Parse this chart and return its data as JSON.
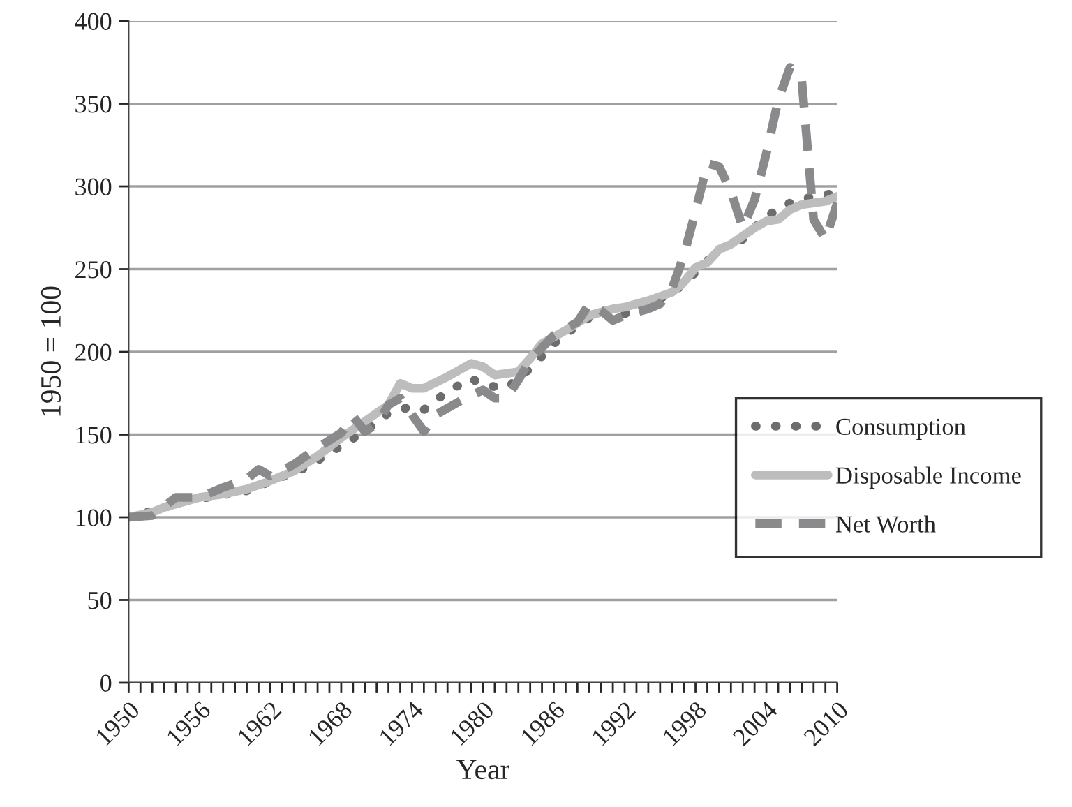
{
  "chart_data": {
    "type": "line",
    "xlabel": "Year",
    "ylabel": "1950 = 100",
    "series": [
      {
        "name": "Consumption",
        "color": "#6d6d6f",
        "line_style": "dotted",
        "x": [
          1950,
          1955,
          1960,
          1965,
          1970,
          1972,
          1974,
          1975,
          1977,
          1979,
          1980,
          1982,
          1984,
          1986,
          1988,
          1990,
          1992,
          1994,
          1996,
          1998,
          2000,
          2002,
          2004,
          2006,
          2008,
          2010
        ],
        "values": [
          100,
          110,
          116,
          130,
          152,
          163,
          167,
          165,
          176,
          184,
          180,
          178,
          190,
          205,
          216,
          225,
          223,
          230,
          235,
          248,
          262,
          268,
          282,
          290,
          294,
          296
        ]
      },
      {
        "name": "Disposable Income",
        "color": "#bdbdbd",
        "line_style": "solid",
        "x": [
          1950,
          1952,
          1953,
          1956,
          1958,
          1960,
          1962,
          1964,
          1966,
          1968,
          1970,
          1972,
          1973,
          1974,
          1975,
          1977,
          1979,
          1980,
          1981,
          1982,
          1983,
          1984,
          1985,
          1987,
          1989,
          1990,
          1991,
          1992,
          1994,
          1996,
          1997,
          1998,
          1999,
          2000,
          2001,
          2002,
          2003,
          2004,
          2005,
          2006,
          2007,
          2008,
          2009,
          2010
        ],
        "values": [
          100,
          103,
          106,
          112,
          114,
          117,
          122,
          128,
          137,
          148,
          158,
          168,
          181,
          178,
          178,
          185,
          193,
          191,
          186,
          187,
          188,
          196,
          205,
          213,
          222,
          224,
          226,
          227,
          231,
          236,
          242,
          251,
          254,
          262,
          265,
          270,
          275,
          279,
          280,
          286,
          289,
          290,
          291,
          294
        ]
      },
      {
        "name": "Net Worth",
        "color": "#8a8a8c",
        "line_style": "dashed",
        "x": [
          1950,
          1952,
          1954,
          1956,
          1958,
          1960,
          1961,
          1962,
          1964,
          1966,
          1968,
          1969,
          1970,
          1971,
          1972,
          1973,
          1974,
          1975,
          1976,
          1978,
          1980,
          1981,
          1982,
          1983,
          1984,
          1986,
          1988,
          1989,
          1990,
          1991,
          1992,
          1994,
          1995,
          1996,
          1997,
          1998,
          1999,
          2000,
          2001,
          2002,
          2003,
          2004,
          2005,
          2006,
          2007,
          2008,
          2009,
          2010
        ],
        "values": [
          100,
          101,
          112,
          112,
          118,
          123,
          129,
          125,
          132,
          142,
          151,
          161,
          152,
          156,
          168,
          172,
          162,
          152,
          162,
          170,
          177,
          172,
          172,
          183,
          195,
          210,
          218,
          229,
          225,
          219,
          222,
          226,
          229,
          238,
          258,
          285,
          314,
          312,
          297,
          275,
          292,
          320,
          352,
          372,
          364,
          280,
          268,
          290
        ]
      }
    ],
    "xlim": [
      1950,
      2010
    ],
    "xticks": [
      {
        "value": 1950,
        "label": "1950"
      },
      {
        "value": 1951,
        "label": null
      },
      {
        "value": 1952,
        "label": null
      },
      {
        "value": 1953,
        "label": null
      },
      {
        "value": 1954,
        "label": null
      },
      {
        "value": 1955,
        "label": null
      },
      {
        "value": 1956,
        "label": "1956"
      },
      {
        "value": 1957,
        "label": null
      },
      {
        "value": 1958,
        "label": null
      },
      {
        "value": 1959,
        "label": null
      },
      {
        "value": 1960,
        "label": null
      },
      {
        "value": 1961,
        "label": null
      },
      {
        "value": 1962,
        "label": "1962"
      },
      {
        "value": 1963,
        "label": null
      },
      {
        "value": 1964,
        "label": null
      },
      {
        "value": 1965,
        "label": null
      },
      {
        "value": 1966,
        "label": null
      },
      {
        "value": 1967,
        "label": null
      },
      {
        "value": 1968,
        "label": "1968"
      },
      {
        "value": 1969,
        "label": null
      },
      {
        "value": 1970,
        "label": null
      },
      {
        "value": 1971,
        "label": null
      },
      {
        "value": 1972,
        "label": null
      },
      {
        "value": 1973,
        "label": null
      },
      {
        "value": 1974,
        "label": "1974"
      },
      {
        "value": 1975,
        "label": null
      },
      {
        "value": 1976,
        "label": null
      },
      {
        "value": 1977,
        "label": null
      },
      {
        "value": 1978,
        "label": null
      },
      {
        "value": 1979,
        "label": null
      },
      {
        "value": 1980,
        "label": "1980"
      },
      {
        "value": 1981,
        "label": null
      },
      {
        "value": 1982,
        "label": null
      },
      {
        "value": 1983,
        "label": null
      },
      {
        "value": 1984,
        "label": null
      },
      {
        "value": 1985,
        "label": null
      },
      {
        "value": 1986,
        "label": "1986"
      },
      {
        "value": 1987,
        "label": null
      },
      {
        "value": 1988,
        "label": null
      },
      {
        "value": 1989,
        "label": null
      },
      {
        "value": 1990,
        "label": null
      },
      {
        "value": 1991,
        "label": null
      },
      {
        "value": 1992,
        "label": "1992"
      },
      {
        "value": 1993,
        "label": null
      },
      {
        "value": 1994,
        "label": null
      },
      {
        "value": 1995,
        "label": null
      },
      {
        "value": 1996,
        "label": null
      },
      {
        "value": 1997,
        "label": null
      },
      {
        "value": 1998,
        "label": "1998"
      },
      {
        "value": 1999,
        "label": null
      },
      {
        "value": 2000,
        "label": null
      },
      {
        "value": 2001,
        "label": null
      },
      {
        "value": 2002,
        "label": null
      },
      {
        "value": 2003,
        "label": null
      },
      {
        "value": 2004,
        "label": "2004"
      },
      {
        "value": 2005,
        "label": null
      },
      {
        "value": 2006,
        "label": null
      },
      {
        "value": 2007,
        "label": null
      },
      {
        "value": 2008,
        "label": null
      },
      {
        "value": 2009,
        "label": null
      },
      {
        "value": 2010,
        "label": "2010"
      }
    ],
    "ylim": [
      0,
      400
    ],
    "yticks": [
      0,
      50,
      100,
      150,
      200,
      250,
      300,
      350,
      400
    ],
    "grid": "y",
    "legend": "right",
    "marker": "none"
  }
}
